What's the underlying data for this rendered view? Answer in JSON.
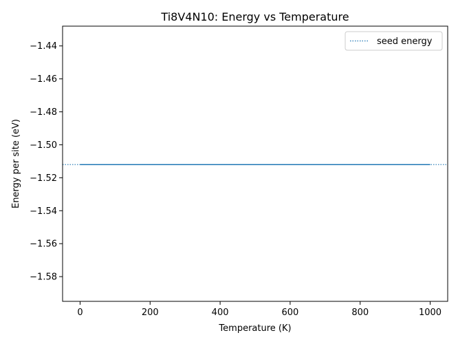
{
  "chart_data": {
    "type": "line",
    "title": "Ti8V4N10: Energy vs Temperature",
    "xlabel": "Temperature (K)",
    "ylabel": "Energy per site (eV)",
    "xlim": [
      -50,
      1050
    ],
    "ylim": [
      -1.595,
      -1.428
    ],
    "xticks": [
      0,
      200,
      400,
      600,
      800,
      1000
    ],
    "xtick_labels": [
      "0",
      "200",
      "400",
      "600",
      "800",
      "1000"
    ],
    "yticks": [
      -1.44,
      -1.46,
      -1.48,
      -1.5,
      -1.52,
      -1.54,
      -1.56,
      -1.58
    ],
    "ytick_labels": [
      "−1.44",
      "−1.46",
      "−1.48",
      "−1.50",
      "−1.52",
      "−1.54",
      "−1.56",
      "−1.58"
    ],
    "series": [
      {
        "x": [
          0,
          100,
          200,
          300,
          400,
          500,
          600,
          700,
          800,
          900,
          1000
        ],
        "y": [
          -1.512,
          -1.512,
          -1.512,
          -1.512,
          -1.512,
          -1.512,
          -1.512,
          -1.512,
          -1.512,
          -1.512,
          -1.512
        ],
        "color": "#1f77b4",
        "style": "solid"
      }
    ],
    "hlines": [
      {
        "name": "seed energy",
        "y": -1.512,
        "color": "#1f77b4",
        "style": "dotted"
      }
    ],
    "legend": {
      "position": "top-right",
      "entries": [
        "seed energy"
      ]
    },
    "grid": false
  }
}
